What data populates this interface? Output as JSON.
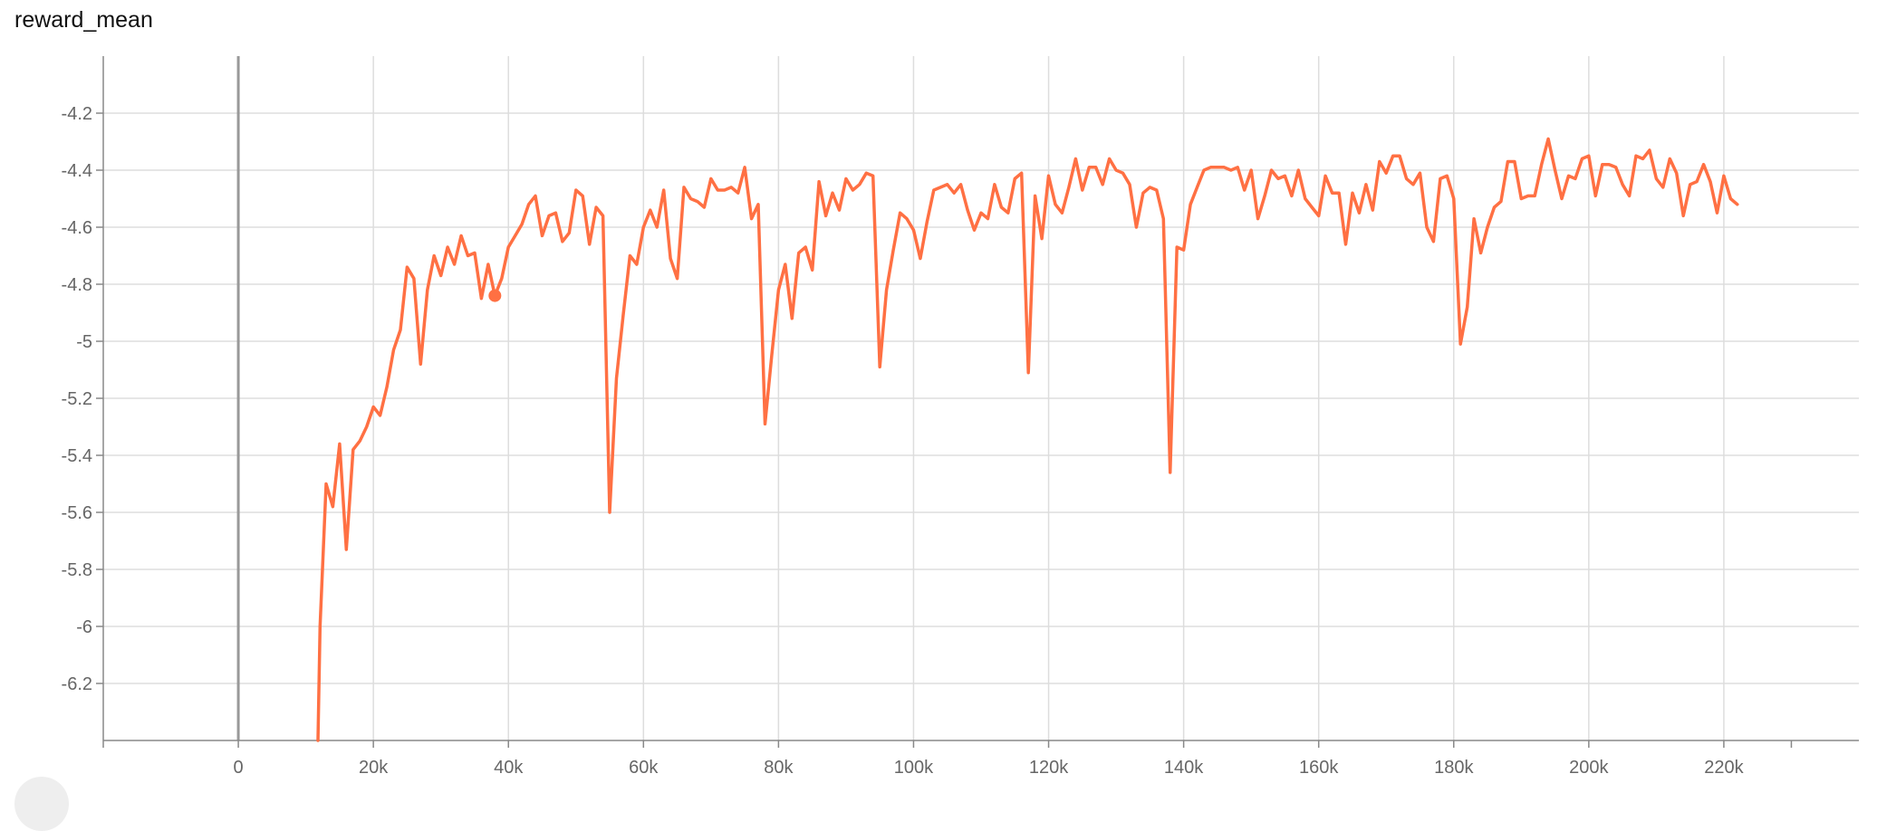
{
  "chart_data": {
    "type": "line",
    "title": "reward_mean",
    "xlabel": "",
    "ylabel": "",
    "xlim": [
      -20000,
      240000
    ],
    "ylim": [
      -6.4,
      -4.0
    ],
    "x_ticks": [
      0,
      20000,
      40000,
      60000,
      80000,
      100000,
      120000,
      140000,
      160000,
      180000,
      200000,
      220000
    ],
    "x_tick_labels": [
      "0",
      "20k",
      "40k",
      "60k",
      "80k",
      "100k",
      "120k",
      "140k",
      "160k",
      "180k",
      "200k",
      "220k"
    ],
    "y_ticks": [
      -6.2,
      -6,
      -5.8,
      -5.6,
      -5.4,
      -5.2,
      -5,
      -4.8,
      -4.6,
      -4.4,
      -4.2
    ],
    "y_tick_labels": [
      "-6.2",
      "-6",
      "-5.8",
      "-5.6",
      "-5.4",
      "-5.2",
      "-5",
      "-4.8",
      "-4.6",
      "-4.4",
      "-4.2"
    ],
    "grid": true,
    "series": [
      {
        "color": "#ff7043",
        "x": [
          11800,
          12100,
          13000,
          14000,
          15000,
          16000,
          17000,
          18000,
          19000,
          20000,
          21000,
          22000,
          23000,
          24000,
          25000,
          26000,
          27000,
          28000,
          29000,
          30000,
          31000,
          32000,
          33000,
          34000,
          35000,
          36000,
          37000,
          38000,
          39000,
          40000,
          41000,
          42000,
          43000,
          44000,
          45000,
          46000,
          47000,
          48000,
          49000,
          50000,
          51000,
          52000,
          53000,
          54000,
          55000,
          56000,
          57000,
          58000,
          59000,
          60000,
          61000,
          62000,
          63000,
          64000,
          65000,
          66000,
          67000,
          68000,
          69000,
          70000,
          71000,
          72000,
          73000,
          74000,
          75000,
          76000,
          77000,
          78000,
          79000,
          80000,
          81000,
          82000,
          83000,
          84000,
          85000,
          86000,
          87000,
          88000,
          89000,
          90000,
          91000,
          92000,
          93000,
          94000,
          95000,
          96000,
          97000,
          98000,
          99000,
          100000,
          101000,
          102000,
          103000,
          104000,
          105000,
          106000,
          107000,
          108000,
          109000,
          110000,
          111000,
          112000,
          113000,
          114000,
          115000,
          116000,
          117000,
          118000,
          119000,
          120000,
          121000,
          122000,
          123000,
          124000,
          125000,
          126000,
          127000,
          128000,
          129000,
          130000,
          131000,
          132000,
          133000,
          134000,
          135000,
          136000,
          137000,
          138000,
          139000,
          140000,
          141000,
          142000,
          143000,
          144000,
          145000,
          146000,
          147000,
          148000,
          149000,
          150000,
          151000,
          152000,
          153000,
          154000,
          155000,
          156000,
          157000,
          158000,
          159000,
          160000,
          161000,
          162000,
          163000,
          164000,
          165000,
          166000,
          167000,
          168000,
          169000,
          170000,
          171000,
          172000,
          173000,
          174000,
          175000,
          176000,
          177000,
          178000,
          179000,
          180000,
          181000,
          182000,
          183000,
          184000,
          185000,
          186000,
          187000,
          188000,
          189000,
          190000,
          191000,
          192000,
          193000,
          194000,
          195000,
          196000,
          197000,
          198000,
          199000,
          200000,
          201000,
          202000,
          203000,
          204000,
          205000,
          206000,
          207000,
          208000,
          209000,
          210000,
          211000,
          212000,
          213000,
          214000,
          215000,
          216000,
          217000,
          218000,
          219000,
          220000,
          221000,
          222000
        ],
        "y": [
          -6.4,
          -6.0,
          -5.5,
          -5.58,
          -5.36,
          -5.73,
          -5.38,
          -5.35,
          -5.3,
          -5.23,
          -5.26,
          -5.16,
          -5.03,
          -4.96,
          -4.74,
          -4.78,
          -5.08,
          -4.82,
          -4.7,
          -4.77,
          -4.67,
          -4.73,
          -4.63,
          -4.7,
          -4.69,
          -4.85,
          -4.73,
          -4.84,
          -4.78,
          -4.67,
          -4.63,
          -4.59,
          -4.52,
          -4.49,
          -4.63,
          -4.56,
          -4.55,
          -4.65,
          -4.62,
          -4.47,
          -4.49,
          -4.66,
          -4.53,
          -4.56,
          -5.6,
          -5.13,
          -4.91,
          -4.7,
          -4.73,
          -4.6,
          -4.54,
          -4.6,
          -4.47,
          -4.71,
          -4.78,
          -4.46,
          -4.5,
          -4.51,
          -4.53,
          -4.43,
          -4.47,
          -4.47,
          -4.46,
          -4.48,
          -4.39,
          -4.57,
          -4.52,
          -5.29,
          -5.05,
          -4.82,
          -4.73,
          -4.92,
          -4.69,
          -4.67,
          -4.75,
          -4.44,
          -4.56,
          -4.48,
          -4.54,
          -4.43,
          -4.47,
          -4.45,
          -4.41,
          -4.42,
          -5.09,
          -4.82,
          -4.68,
          -4.55,
          -4.57,
          -4.61,
          -4.71,
          -4.58,
          -4.47,
          -4.46,
          -4.45,
          -4.48,
          -4.45,
          -4.54,
          -4.61,
          -4.55,
          -4.57,
          -4.45,
          -4.53,
          -4.55,
          -4.43,
          -4.41,
          -5.11,
          -4.49,
          -4.64,
          -4.42,
          -4.52,
          -4.55,
          -4.46,
          -4.36,
          -4.47,
          -4.39,
          -4.39,
          -4.45,
          -4.36,
          -4.4,
          -4.41,
          -4.45,
          -4.6,
          -4.48,
          -4.46,
          -4.47,
          -4.57,
          -5.46,
          -4.67,
          -4.68,
          -4.52,
          -4.46,
          -4.4,
          -4.39,
          -4.39,
          -4.39,
          -4.4,
          -4.39,
          -4.47,
          -4.4,
          -4.57,
          -4.49,
          -4.4,
          -4.43,
          -4.42,
          -4.49,
          -4.4,
          -4.5,
          -4.53,
          -4.56,
          -4.42,
          -4.48,
          -4.48,
          -4.66,
          -4.48,
          -4.55,
          -4.45,
          -4.54,
          -4.37,
          -4.41,
          -4.35,
          -4.35,
          -4.43,
          -4.45,
          -4.41,
          -4.6,
          -4.65,
          -4.43,
          -4.42,
          -4.5,
          -5.01,
          -4.88,
          -4.57,
          -4.69,
          -4.6,
          -4.53,
          -4.51,
          -4.37,
          -4.37,
          -4.5,
          -4.49,
          -4.49,
          -4.38,
          -4.29,
          -4.4,
          -4.5,
          -4.42,
          -4.43,
          -4.36,
          -4.35,
          -4.49,
          -4.38,
          -4.38,
          -4.39,
          -4.45,
          -4.49,
          -4.35,
          -4.36,
          -4.33,
          -4.43,
          -4.46,
          -4.36,
          -4.41,
          -4.56,
          -4.45,
          -4.44,
          -4.38,
          -4.44,
          -4.55,
          -4.42,
          -4.5,
          -4.52
        ]
      }
    ],
    "highlight_point": {
      "x": 38000,
      "y": -4.84
    }
  }
}
